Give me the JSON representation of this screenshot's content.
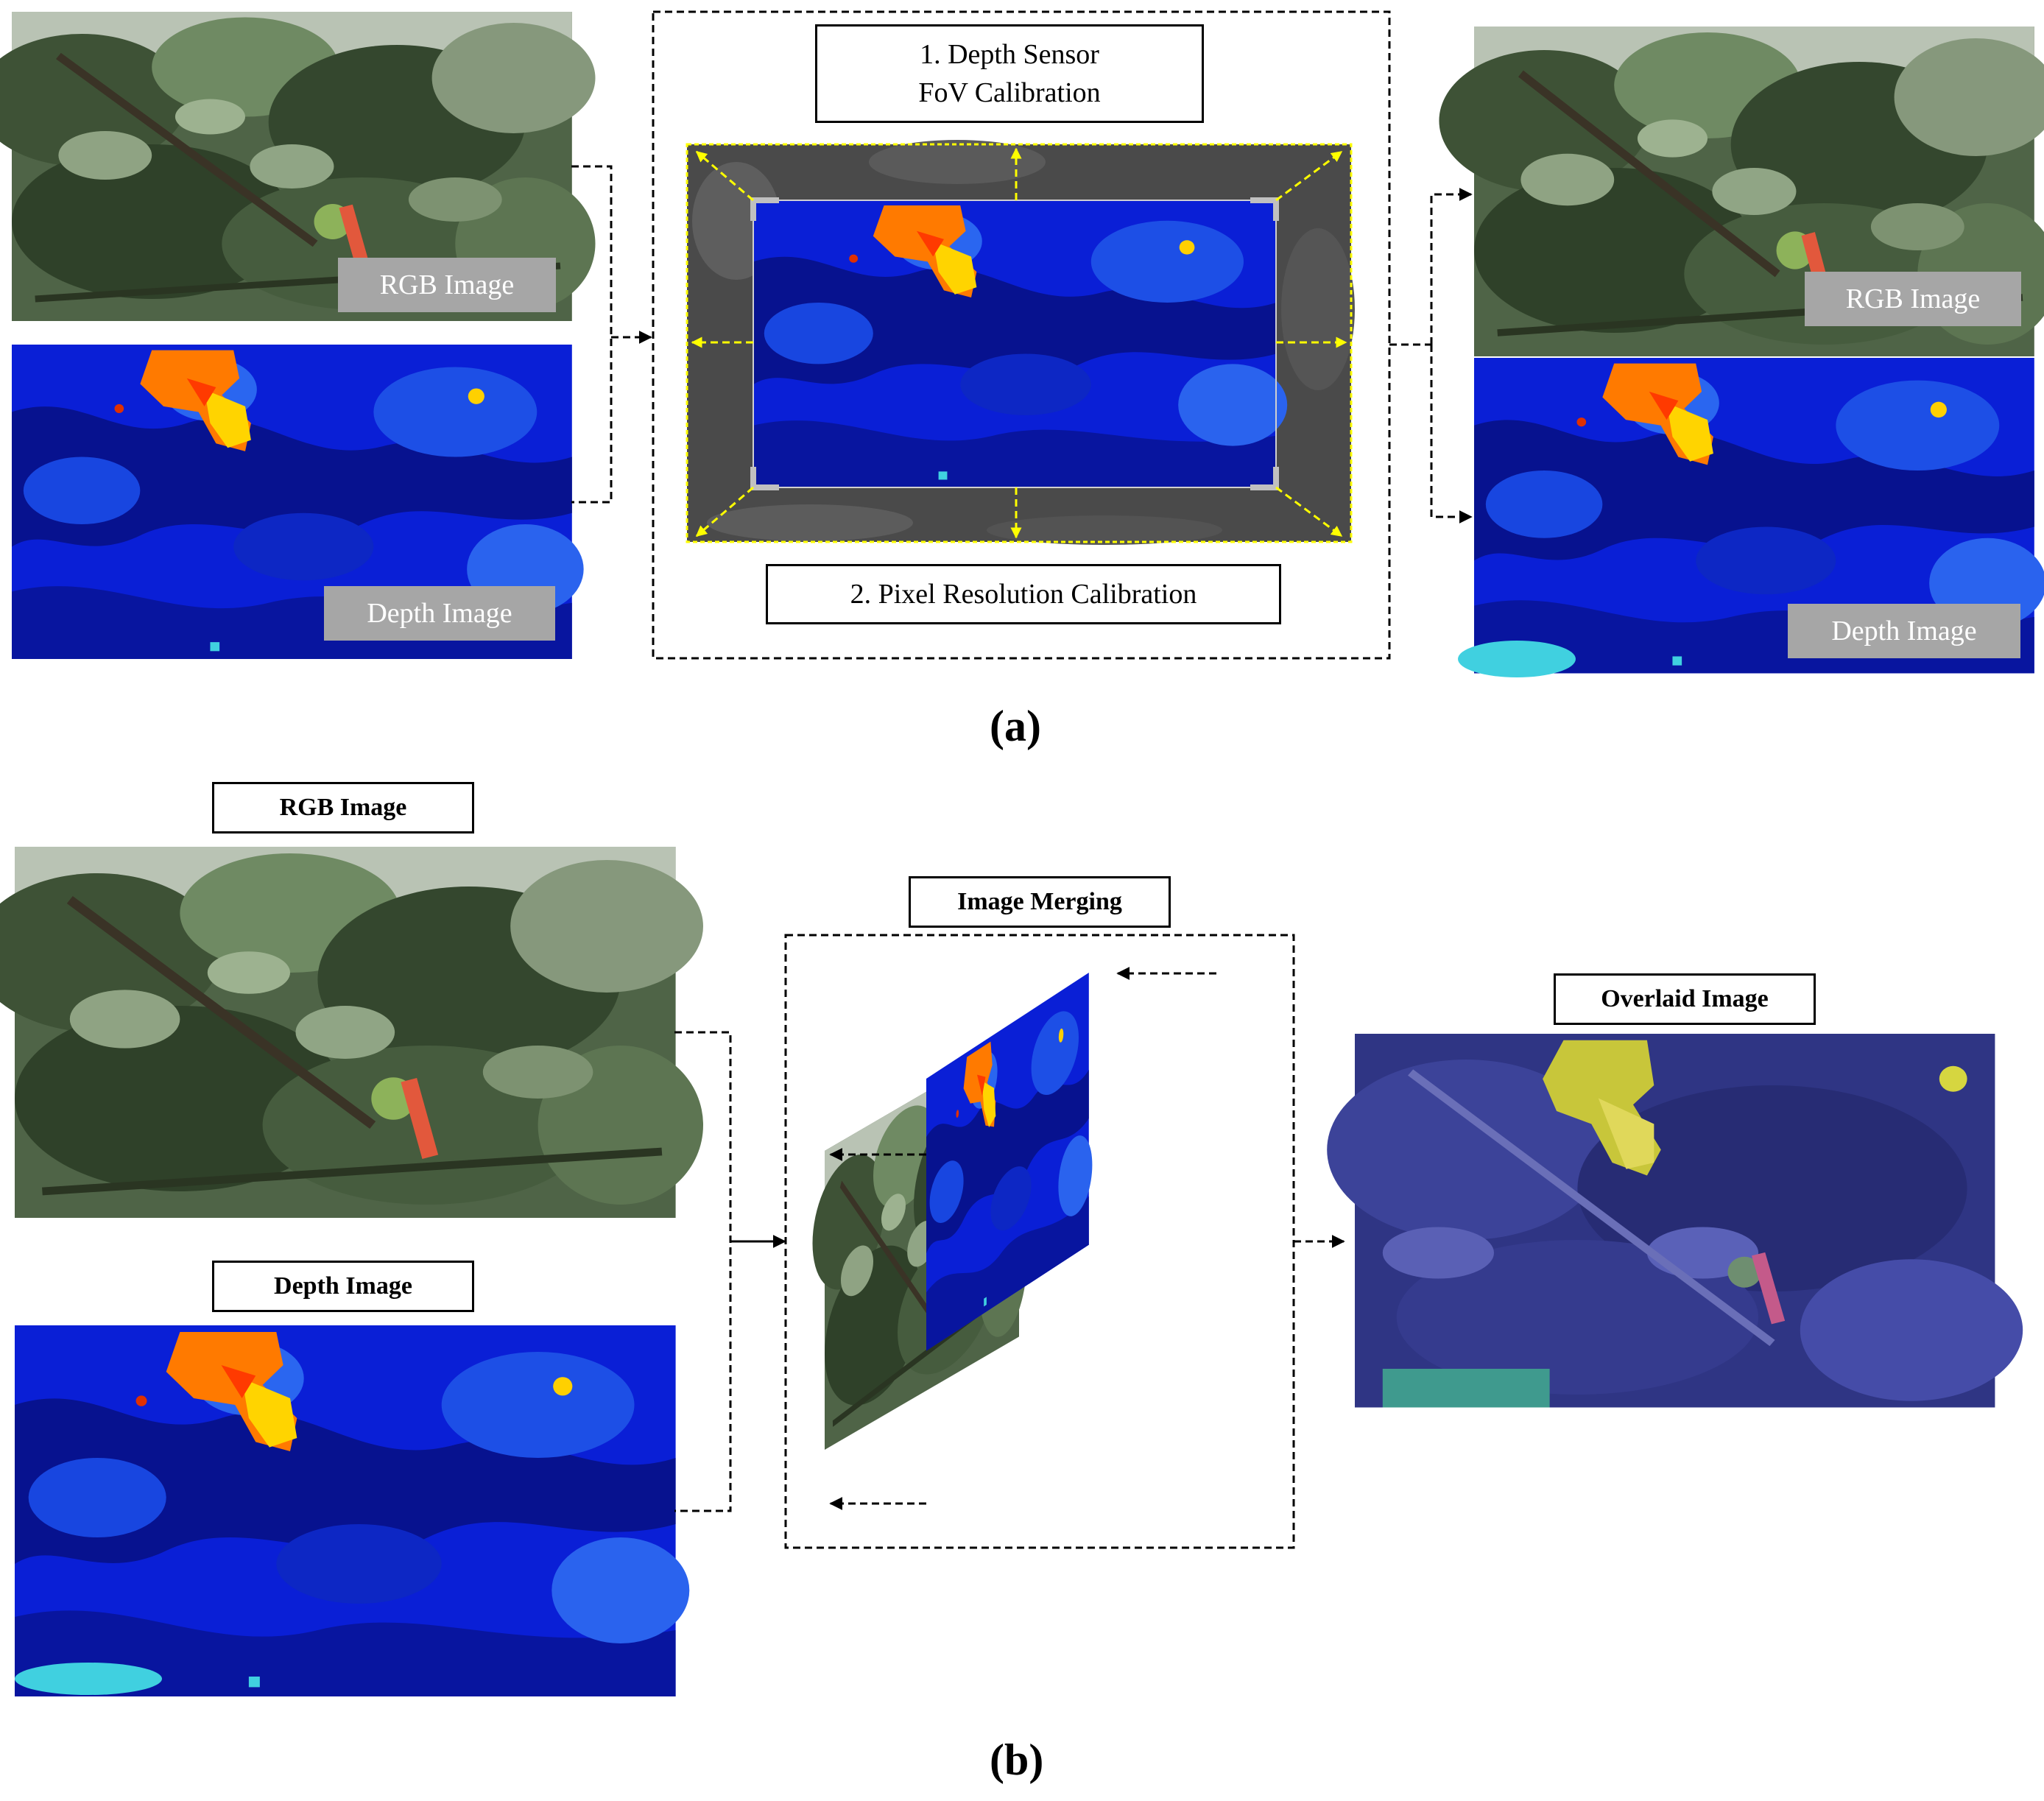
{
  "panel_a": {
    "label": "(a)",
    "input_rgb_label": "RGB Image",
    "input_depth_label": "Depth Image",
    "calibration_step_1_line1": "1. Depth Sensor",
    "calibration_step_1_line2": "FoV Calibration",
    "calibration_step_2": "2. Pixel Resolution Calibration",
    "output_rgb_label": "RGB Image",
    "output_depth_label": "Depth Image"
  },
  "panel_b": {
    "label": "(b)",
    "rgb_title": "RGB Image",
    "depth_title": "Depth Image",
    "merging_title": "Image Merging",
    "overlaid_title": "Overlaid Image"
  },
  "colors": {
    "depth_background": "#0a1fd6",
    "depth_dark": "#07128f",
    "depth_hot": "#ff7a00",
    "depth_warm": "#ffd400",
    "calibration_frame": "#ffff00",
    "foliage": "#5a7050",
    "overlay": "#3a3f8f"
  }
}
